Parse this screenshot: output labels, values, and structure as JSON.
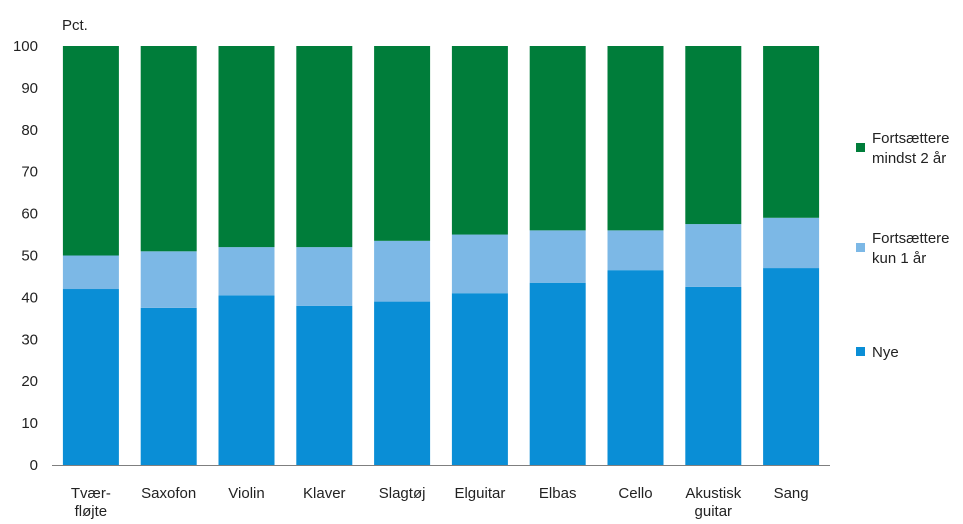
{
  "chart_data": {
    "type": "bar",
    "stacked": true,
    "ylabel": "Pct.",
    "ylim": [
      0,
      100
    ],
    "yticks": [
      0,
      10,
      20,
      30,
      40,
      50,
      60,
      70,
      80,
      90,
      100
    ],
    "grid": false,
    "legend_position": "right",
    "categories": [
      [
        "Tvær-",
        "fløjte"
      ],
      [
        "Saxofon"
      ],
      [
        "Violin"
      ],
      [
        "Klaver"
      ],
      [
        "Slagtøj"
      ],
      [
        "Elguitar"
      ],
      [
        "Elbas"
      ],
      [
        "Cello"
      ],
      [
        "Akustisk",
        "guitar"
      ],
      [
        "Sang"
      ]
    ],
    "series": [
      {
        "name": [
          "Nye"
        ],
        "color": "#0a8ed6",
        "values": [
          42,
          37.5,
          40.5,
          38,
          39,
          41,
          43.5,
          46.5,
          42.5,
          47
        ]
      },
      {
        "name": [
          "Fortsættere",
          "kun 1 år"
        ],
        "color": "#7cb8e6",
        "values": [
          8,
          13.5,
          11.5,
          14,
          14.5,
          14,
          12.5,
          9.5,
          15,
          12
        ]
      },
      {
        "name": [
          "Fortsættere",
          "mindst 2 år"
        ],
        "color": "#007d3a",
        "values": [
          50,
          49,
          48,
          48,
          46.5,
          45,
          44,
          44,
          42.5,
          41
        ]
      }
    ]
  }
}
